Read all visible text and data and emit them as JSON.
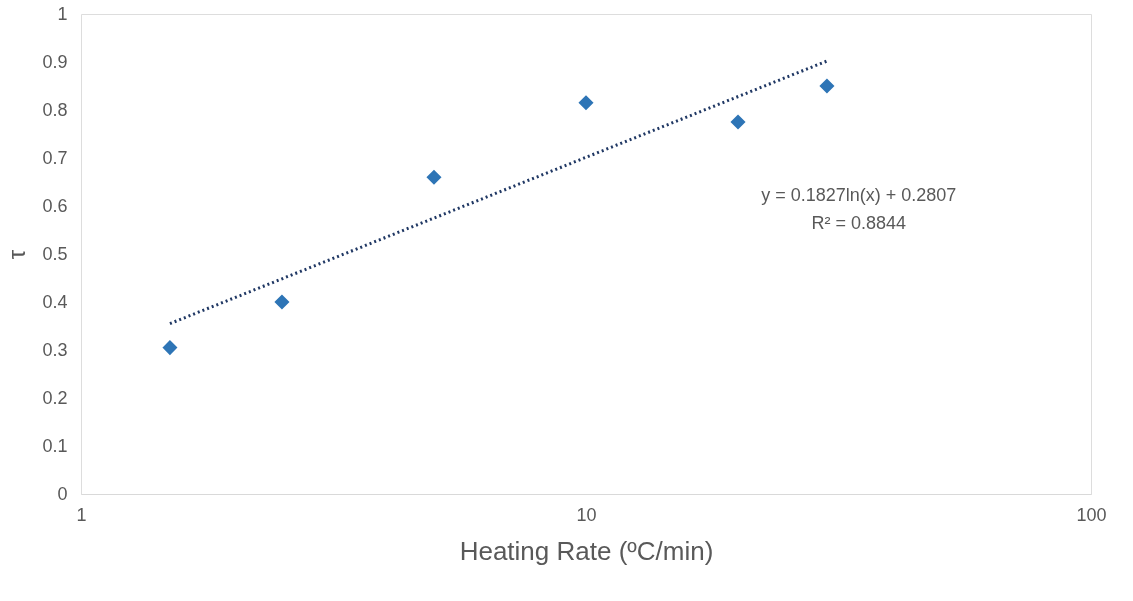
{
  "chart_data": {
    "type": "scatter",
    "xlabel": "Heating Rate (ºC/min)",
    "ylabel": "τ",
    "log": "x",
    "xlim": [
      1,
      100
    ],
    "xticks": [
      1,
      10,
      100
    ],
    "ylim": [
      0,
      1
    ],
    "yticks": [
      0,
      0.1,
      0.2,
      0.3,
      0.4,
      0.5,
      0.6,
      0.7,
      0.8,
      0.9,
      1
    ],
    "grid": false,
    "series": [
      {
        "color": "#2e75b6",
        "marker": "diamond",
        "x": [
          1.5,
          2.5,
          5,
          10,
          20,
          30
        ],
        "values": [
          0.305,
          0.4,
          0.66,
          0.815,
          0.775,
          0.85
        ]
      },
      {
        "type": "line",
        "line_style": "dotted",
        "color": "#203864",
        "x": [
          1.5,
          30
        ],
        "values": [
          0.355,
          0.902
        ]
      }
    ],
    "annotations": [
      "y = 0.1827ln(x) + 0.2807",
      "R² = 0.8844"
    ]
  }
}
